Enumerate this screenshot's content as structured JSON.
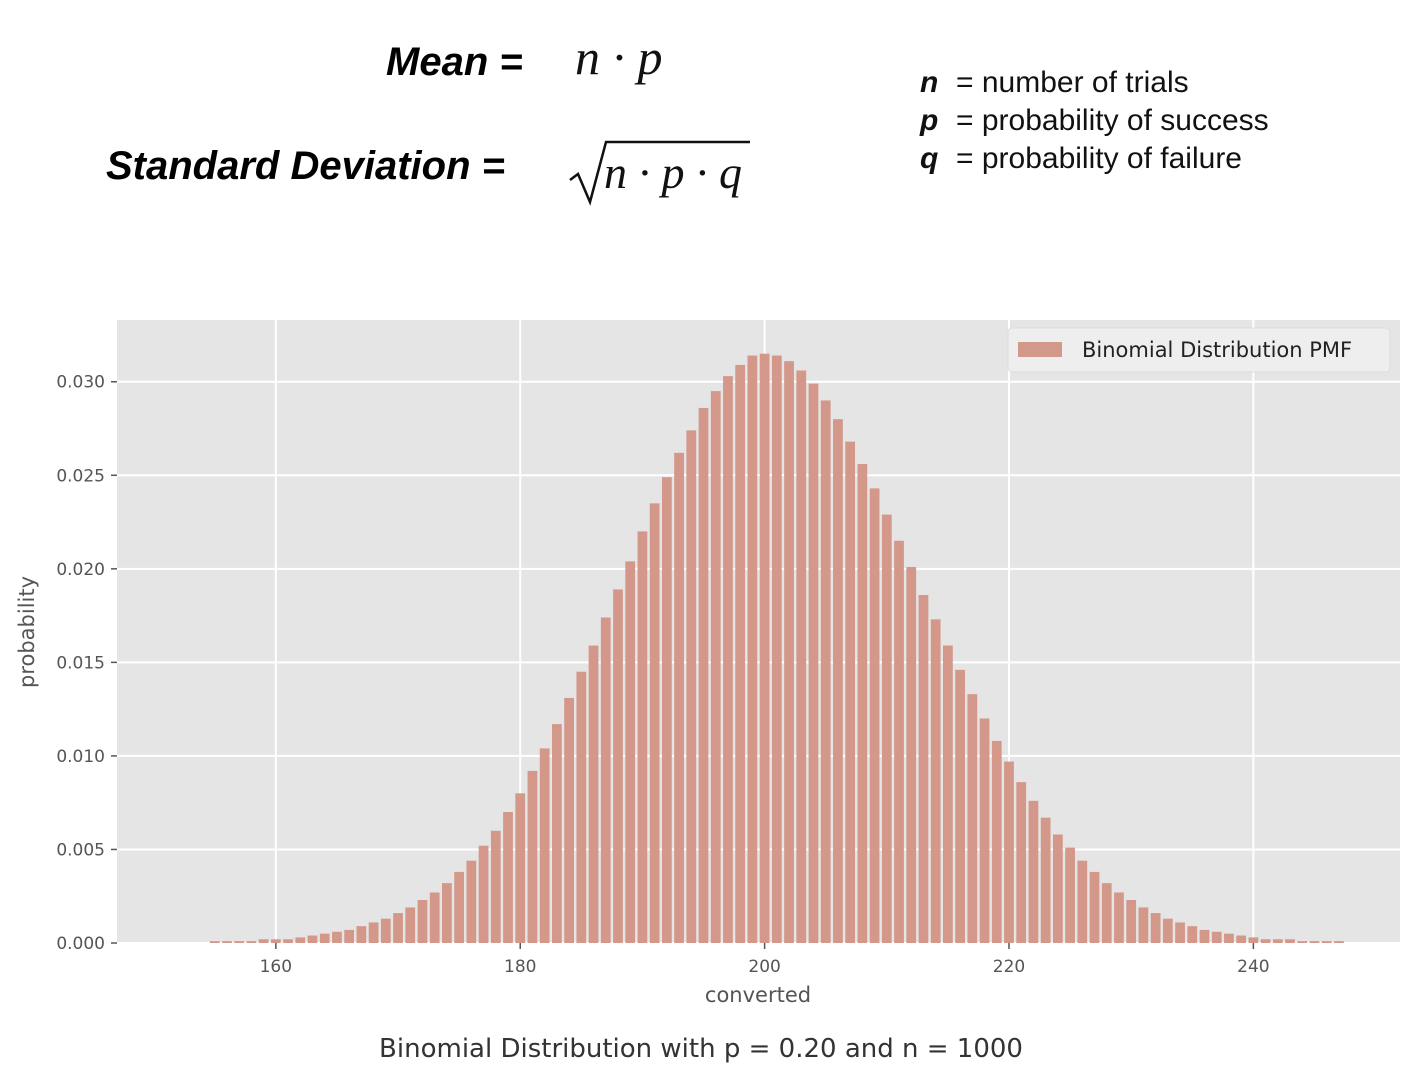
{
  "formulas": {
    "mean_label": "Mean =",
    "mean_expr": "n · p",
    "sd_label": "Standard Deviation =",
    "sd_expr": "n · p · q"
  },
  "definitions": [
    {
      "symbol": "n",
      "text": "= number of trials"
    },
    {
      "symbol": "p",
      "text": "= probability of success"
    },
    {
      "symbol": "q",
      "text": "= probability of failure"
    }
  ],
  "caption": "Binomial Distribution with p = 0.20 and n = 1000",
  "colors": {
    "bar": "#d4988a",
    "plot_bg": "#e5e5e5",
    "grid": "#ffffff"
  },
  "chart_data": {
    "type": "bar",
    "xlabel": "converted",
    "ylabel": "probability",
    "xlim": [
      147,
      252
    ],
    "ylim": [
      0,
      0.0333
    ],
    "xticks": [
      160,
      180,
      200,
      220,
      240
    ],
    "yticks": [
      "0.000",
      "0.005",
      "0.010",
      "0.015",
      "0.020",
      "0.025",
      "0.030"
    ],
    "grid": true,
    "legend": {
      "placement": "top-right",
      "entries": [
        "Binomial Distribution PMF"
      ]
    },
    "x": [
      155,
      156,
      157,
      158,
      159,
      160,
      161,
      162,
      163,
      164,
      165,
      166,
      167,
      168,
      169,
      170,
      171,
      172,
      173,
      174,
      175,
      176,
      177,
      178,
      179,
      180,
      181,
      182,
      183,
      184,
      185,
      186,
      187,
      188,
      189,
      190,
      191,
      192,
      193,
      194,
      195,
      196,
      197,
      198,
      199,
      200,
      201,
      202,
      203,
      204,
      205,
      206,
      207,
      208,
      209,
      210,
      211,
      212,
      213,
      214,
      215,
      216,
      217,
      218,
      219,
      220,
      221,
      222,
      223,
      224,
      225,
      226,
      227,
      228,
      229,
      230,
      231,
      232,
      233,
      234,
      235,
      236,
      237,
      238,
      239,
      240,
      241,
      242,
      243,
      244,
      245,
      246,
      247
    ],
    "values": [
      0.0001,
      0.0001,
      0.0001,
      0.0001,
      0.0002,
      0.0002,
      0.0002,
      0.0003,
      0.0004,
      0.0005,
      0.0006,
      0.0007,
      0.0009,
      0.0011,
      0.0013,
      0.0016,
      0.0019,
      0.0023,
      0.0027,
      0.0032,
      0.0038,
      0.0044,
      0.0052,
      0.006,
      0.007,
      0.008,
      0.0092,
      0.0104,
      0.0117,
      0.0131,
      0.0145,
      0.0159,
      0.0174,
      0.0189,
      0.0204,
      0.022,
      0.0235,
      0.0249,
      0.0262,
      0.0274,
      0.0286,
      0.0295,
      0.0303,
      0.0309,
      0.0314,
      0.0315,
      0.0314,
      0.0311,
      0.0306,
      0.0299,
      0.029,
      0.028,
      0.0268,
      0.0256,
      0.0243,
      0.0229,
      0.0215,
      0.0201,
      0.0186,
      0.0173,
      0.0159,
      0.0146,
      0.0133,
      0.012,
      0.0108,
      0.0097,
      0.0086,
      0.0076,
      0.0067,
      0.0058,
      0.0051,
      0.0044,
      0.0038,
      0.0032,
      0.0027,
      0.0023,
      0.0019,
      0.0016,
      0.0013,
      0.0011,
      0.0009,
      0.0007,
      0.0006,
      0.0005,
      0.0004,
      0.0003,
      0.0002,
      0.0002,
      0.0002,
      0.0001,
      0.0001,
      0.0001,
      0.0001
    ]
  }
}
